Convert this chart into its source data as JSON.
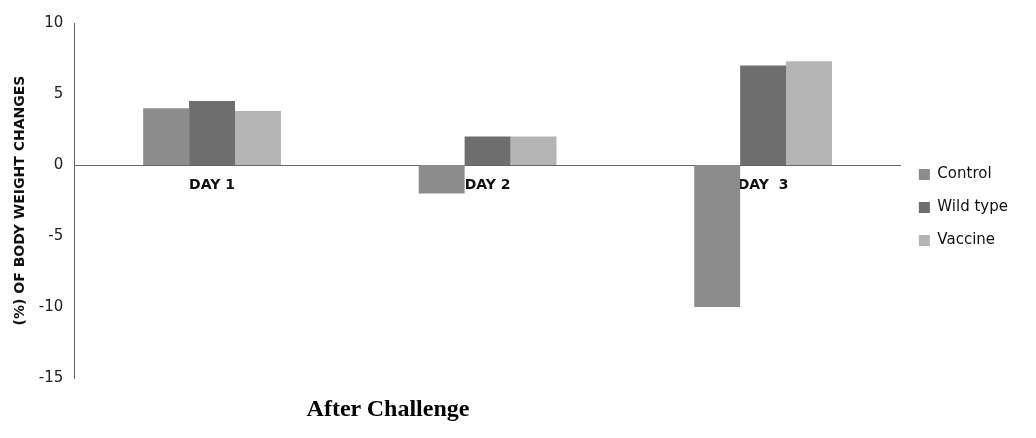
{
  "chart_data": {
    "type": "bar",
    "xlabel": "After Challenge",
    "ylabel": "(%) OF BODY WEIGHT CHANGES",
    "categories": [
      "DAY 1",
      "DAY 2",
      "DAY  3"
    ],
    "series": [
      {
        "name": "Control",
        "color": "#8c8c8c",
        "values": [
          4.0,
          -2.0,
          -10.0
        ]
      },
      {
        "name": "Wild type",
        "color": "#6e6e6e",
        "values": [
          4.5,
          2.0,
          7.0
        ]
      },
      {
        "name": "Vaccine",
        "color": "#b4b4b4",
        "values": [
          3.8,
          2.0,
          7.3
        ]
      }
    ],
    "ylim": [
      -15,
      10
    ],
    "yticks": [
      -15,
      -10,
      -5,
      0,
      5,
      10
    ],
    "grid": false,
    "legend": "right"
  }
}
